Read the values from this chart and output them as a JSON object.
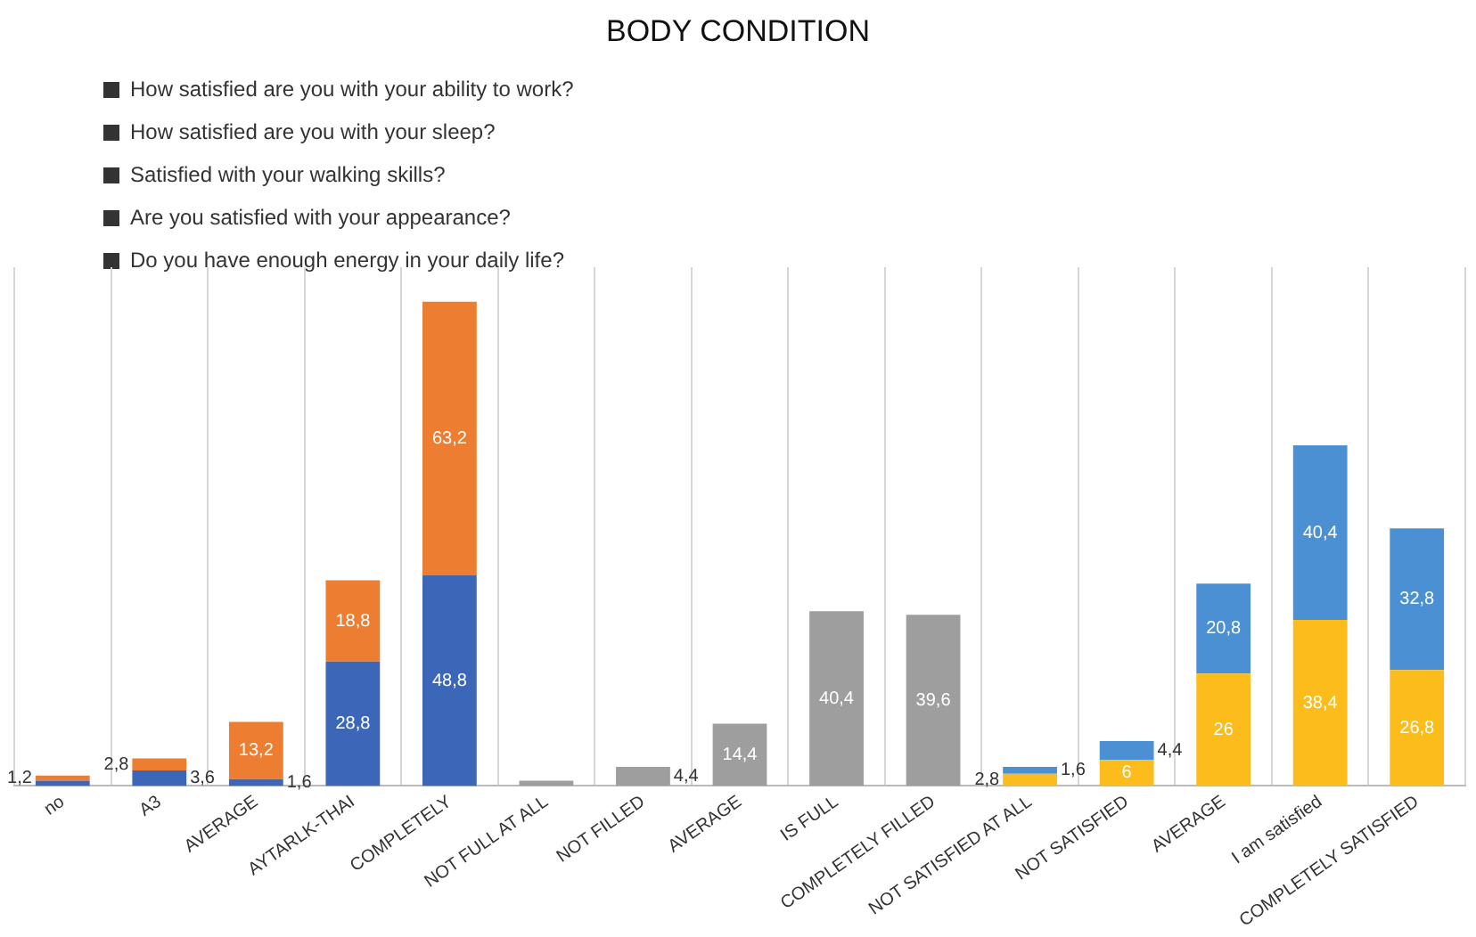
{
  "chart_data": {
    "type": "bar",
    "title": "BODY CONDITION",
    "stacked": true,
    "legend": false,
    "grid": "x",
    "data_labels": false,
    "annotations": [
      "How satisfied are you with your ability to work?",
      "How satisfied are you with your sleep?",
      "Satisfied with your walking skills?",
      "Are you satisfied with your appearance?",
      "Do you have enough energy in your daily life?"
    ],
    "categories": [
      "no",
      "A3",
      "AVERAGE",
      "AYTARLK-THAI",
      "COMPLETELY",
      "NOT FULL AT ALL",
      "NOT FILLED",
      "AVERAGE",
      "IS FULL",
      "COMPLETELY FILLED",
      "NOT SATISFIED AT ALL",
      "NOT SATISFIED",
      "AVERAGE",
      "I am satisfied",
      "COMPLETELY SATISFIED"
    ],
    "series": [
      {
        "color": "#3c67b9",
        "values": [
          1.2,
          3.6,
          1.6,
          28.8,
          48.8,
          null,
          null,
          null,
          null,
          null,
          null,
          null,
          null,
          null,
          null
        ],
        "value_labels": [
          null,
          "3,6",
          "1,6",
          "28,8",
          "48,8",
          null,
          null,
          null,
          null,
          null,
          null,
          null,
          null,
          null,
          null
        ]
      },
      {
        "color": "#ed7d31",
        "values": [
          1.2,
          2.8,
          13.2,
          18.8,
          63.2,
          null,
          null,
          null,
          null,
          null,
          null,
          null,
          null,
          null,
          null
        ],
        "value_labels": [
          "1,2",
          "2,8",
          "13,2",
          "18,8",
          "63,2",
          null,
          null,
          null,
          null,
          null,
          null,
          null,
          null,
          null,
          null
        ]
      },
      {
        "color": "#9e9e9e",
        "values": [
          null,
          null,
          null,
          null,
          null,
          1.2,
          4.4,
          14.4,
          40.4,
          39.6,
          null,
          null,
          null,
          null,
          null
        ],
        "value_labels": [
          null,
          null,
          null,
          null,
          null,
          null,
          "4,4",
          "14,4",
          "40,4",
          "39,6",
          null,
          null,
          null,
          null,
          null
        ]
      },
      {
        "color": "#fbbc1c",
        "values": [
          null,
          null,
          null,
          null,
          null,
          null,
          null,
          null,
          null,
          null,
          2.8,
          6,
          26,
          38.4,
          26.8
        ],
        "value_labels": [
          null,
          null,
          null,
          null,
          null,
          null,
          null,
          null,
          null,
          null,
          "2,8",
          "6",
          "26",
          "38,4",
          "26,8"
        ]
      },
      {
        "color": "#4a90d2",
        "values": [
          null,
          null,
          null,
          null,
          null,
          null,
          null,
          null,
          null,
          null,
          1.6,
          4.4,
          20.8,
          40.4,
          32.8
        ],
        "value_labels": [
          null,
          null,
          null,
          null,
          null,
          null,
          null,
          null,
          null,
          null,
          "1,6",
          "4,4",
          "20,8",
          "40,4",
          "32,8"
        ]
      }
    ]
  }
}
